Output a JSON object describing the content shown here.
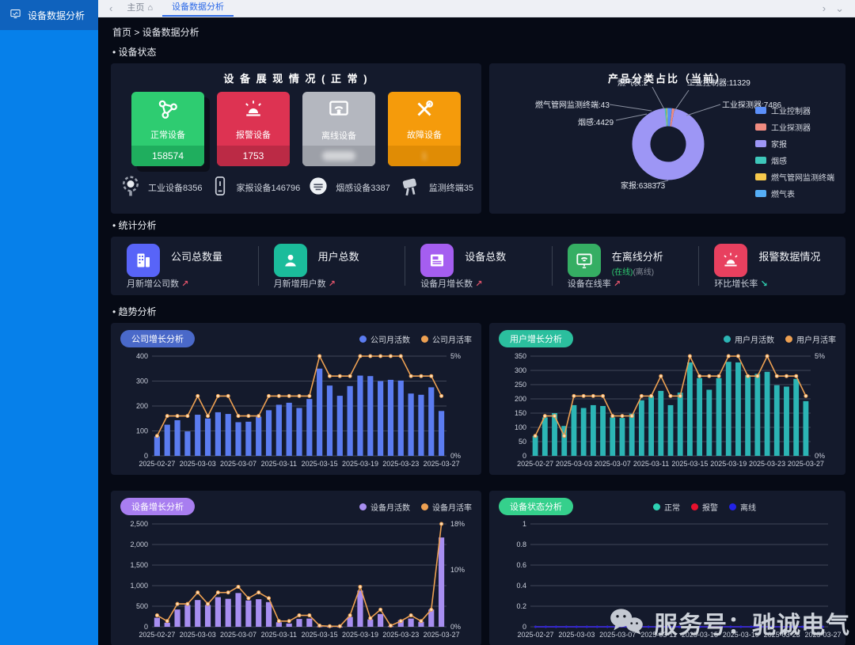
{
  "sidebar": {
    "active_item": {
      "label": "设备数据分析"
    }
  },
  "tabbar": {
    "back_chevron": "‹",
    "tabs": [
      {
        "label": "主页",
        "icon": "home-icon",
        "active": false
      },
      {
        "label": "设备数据分析",
        "icon": null,
        "active": true
      }
    ],
    "forward_chevron": "›",
    "more_chevron": "⌄"
  },
  "breadcrumb": "首页 > 设备数据分析",
  "sections": {
    "device_status": "• 设备状态",
    "stats": "• 统计分析",
    "trend": "• 趋势分析"
  },
  "device_panel": {
    "title": "设 备 展 现 情 况 ( 正 常 )",
    "cards": [
      {
        "label": "正常设备",
        "value": "158574",
        "color": "#2ecc71",
        "strip": "#1fae5e",
        "icon": "nodes-icon",
        "blurred": false,
        "raised": true
      },
      {
        "label": "报警设备",
        "value": "1753",
        "color": "#dd3352",
        "strip": "#bb2a45",
        "icon": "siren-icon",
        "blurred": false,
        "raised": false
      },
      {
        "label": "离线设备",
        "value": "",
        "color": "#b4b7bf",
        "strip": "#9da0a8",
        "icon": "offline-monitor-icon",
        "blurred": true,
        "raised": false
      },
      {
        "label": "故障设备",
        "value": "1",
        "color": "#f59b0b",
        "strip": "#e08c05",
        "icon": "tools-icon",
        "blurred": true,
        "raised": false
      }
    ],
    "devices": [
      {
        "label": "工业设备8356",
        "icon": "industry-device-icon"
      },
      {
        "label": "家报设备146796",
        "icon": "home-device-icon"
      },
      {
        "label": "烟感设备3387",
        "icon": "smoke-detector-icon"
      },
      {
        "label": "监测终端35",
        "icon": "monitor-terminal-icon"
      }
    ]
  },
  "stats_panel": {
    "items": [
      {
        "icon": "company-icon",
        "icon_color": "#5864f8",
        "title": "公司总数量",
        "sub": "月新增公司数",
        "arrow": "↗",
        "arrow_color": "#e0536a"
      },
      {
        "icon": "user-icon",
        "icon_color": "#1bbc9b",
        "title": "用户总数",
        "sub": "月新增用户数",
        "arrow": "↗",
        "arrow_color": "#e0536a"
      },
      {
        "icon": "device-card-icon",
        "icon_color": "#a55ef0",
        "title": "设备总数",
        "sub": "设备月增长数",
        "arrow": "↗",
        "arrow_color": "#e0536a"
      },
      {
        "icon": "online-monitor-icon",
        "icon_color": "#35ae63",
        "title": "在离线分析",
        "extra_online": "(在线)",
        "extra_offline": "(离线)",
        "online_color": "#2ecc71",
        "offline_color": "#868c98",
        "sub": "设备在线率",
        "arrow": "↗",
        "arrow_color": "#e0536a"
      },
      {
        "icon": "alarm-icon",
        "icon_color": "#e8405f",
        "title": "报警数据情况",
        "sub": "环比增长率",
        "arrow": "↘",
        "arrow_color": "#2fd0b0"
      }
    ]
  },
  "chart_data": [
    {
      "type": "pie",
      "title": "产品分类占比（当前）",
      "legend_position": "right",
      "slices": [
        {
          "name": "工业控制器",
          "value": 11329,
          "color": "#5b8ff9"
        },
        {
          "name": "工业探测器",
          "value": 7486,
          "color": "#f08b80"
        },
        {
          "name": "家报",
          "value": 638373,
          "color": "#9d96f5"
        },
        {
          "name": "烟感",
          "value": 4429,
          "color": "#3ec7ba"
        },
        {
          "name": "燃气管网监测终端",
          "value": 43,
          "color": "#f6c94c"
        },
        {
          "name": "燃气表",
          "value": 2,
          "color": "#55aef6"
        }
      ]
    },
    {
      "type": "bar",
      "title": "公司增长分析",
      "badge_color": "#4a69c9",
      "x": [
        "2025-02-27",
        "2025-02-28",
        "2025-03-01",
        "2025-03-02",
        "2025-03-03",
        "2025-03-04",
        "2025-03-05",
        "2025-03-06",
        "2025-03-07",
        "2025-03-08",
        "2025-03-09",
        "2025-03-10",
        "2025-03-11",
        "2025-03-12",
        "2025-03-13",
        "2025-03-14",
        "2025-03-15",
        "2025-03-16",
        "2025-03-17",
        "2025-03-18",
        "2025-03-19",
        "2025-03-20",
        "2025-03-21",
        "2025-03-22",
        "2025-03-23",
        "2025-03-24",
        "2025-03-25",
        "2025-03-26",
        "2025-03-27"
      ],
      "x_tick_every": 4,
      "left_axis": {
        "ticks": [
          0,
          100,
          200,
          300,
          400
        ],
        "max": 400
      },
      "right_axis": {
        "max": 5,
        "ticks": [
          {
            "value": 0,
            "label": "0%"
          },
          {
            "value": 5,
            "label": "5%"
          }
        ]
      },
      "series": [
        {
          "name": "公司月活数",
          "type": "bar",
          "color": "#5b7cf0",
          "values": [
            78,
            125,
            143,
            98,
            165,
            150,
            175,
            168,
            135,
            137,
            157,
            183,
            205,
            213,
            192,
            228,
            350,
            282,
            241,
            280,
            322,
            320,
            300,
            305,
            302,
            250,
            245,
            275,
            180
          ]
        },
        {
          "name": "公司月活率",
          "type": "line",
          "axis": "right",
          "color": "#eda052",
          "values": [
            1,
            2,
            2,
            2,
            3,
            2,
            3,
            3,
            2,
            2,
            2,
            3,
            3,
            3,
            3,
            3,
            5,
            4,
            4,
            4,
            5,
            5,
            5,
            5,
            5,
            4,
            4,
            4,
            3
          ]
        }
      ]
    },
    {
      "type": "bar",
      "title": "用户增长分析",
      "badge_color": "#2bbf9e",
      "x": [
        "2025-02-27",
        "2025-02-28",
        "2025-03-01",
        "2025-03-02",
        "2025-03-03",
        "2025-03-04",
        "2025-03-05",
        "2025-03-06",
        "2025-03-07",
        "2025-03-08",
        "2025-03-09",
        "2025-03-10",
        "2025-03-11",
        "2025-03-12",
        "2025-03-13",
        "2025-03-14",
        "2025-03-15",
        "2025-03-16",
        "2025-03-17",
        "2025-03-18",
        "2025-03-19",
        "2025-03-20",
        "2025-03-21",
        "2025-03-22",
        "2025-03-23",
        "2025-03-24",
        "2025-03-25",
        "2025-03-26",
        "2025-03-27"
      ],
      "x_tick_every": 4,
      "left_axis": {
        "ticks": [
          0,
          50,
          100,
          150,
          200,
          250,
          300,
          350
        ],
        "max": 350
      },
      "right_axis": {
        "max": 5,
        "ticks": [
          {
            "value": 0,
            "label": "0%"
          },
          {
            "value": 5,
            "label": "5%"
          }
        ]
      },
      "series": [
        {
          "name": "用户月活数",
          "type": "bar",
          "color": "#2cb5b5",
          "values": [
            70,
            135,
            150,
            105,
            178,
            168,
            178,
            175,
            135,
            133,
            148,
            195,
            210,
            228,
            178,
            222,
            328,
            273,
            232,
            273,
            330,
            328,
            283,
            288,
            295,
            248,
            243,
            270,
            192
          ]
        },
        {
          "name": "用户月活率",
          "type": "line",
          "axis": "right",
          "color": "#eda052",
          "values": [
            1,
            2,
            2,
            1,
            3,
            3,
            3,
            3,
            2,
            2,
            2,
            3,
            3,
            4,
            3,
            3,
            5,
            4,
            4,
            4,
            5,
            5,
            4,
            4,
            5,
            4,
            4,
            4,
            3
          ]
        }
      ]
    },
    {
      "type": "bar",
      "title": "设备增长分析",
      "badge_color": "#a87ef0",
      "x": [
        "2025-02-27",
        "2025-02-28",
        "2025-03-01",
        "2025-03-02",
        "2025-03-03",
        "2025-03-04",
        "2025-03-05",
        "2025-03-06",
        "2025-03-07",
        "2025-03-08",
        "2025-03-09",
        "2025-03-10",
        "2025-03-11",
        "2025-03-12",
        "2025-03-13",
        "2025-03-14",
        "2025-03-15",
        "2025-03-16",
        "2025-03-17",
        "2025-03-18",
        "2025-03-19",
        "2025-03-20",
        "2025-03-21",
        "2025-03-22",
        "2025-03-23",
        "2025-03-24",
        "2025-03-25",
        "2025-03-26",
        "2025-03-27"
      ],
      "x_tick_every": 4,
      "left_axis": {
        "ticks": [
          0,
          500,
          1000,
          1500,
          2000,
          2500
        ],
        "max": 2500
      },
      "right_axis": {
        "max": 18,
        "ticks": [
          {
            "value": 0,
            "label": "0%"
          },
          {
            "value": 10,
            "label": "10%"
          },
          {
            "value": 18,
            "label": "18%"
          }
        ]
      },
      "series": [
        {
          "name": "设备月活数",
          "type": "bar",
          "color": "#a78ef0",
          "values": [
            220,
            100,
            420,
            530,
            650,
            530,
            720,
            680,
            820,
            640,
            670,
            600,
            110,
            80,
            190,
            200,
            10,
            5,
            5,
            240,
            880,
            180,
            310,
            15,
            160,
            200,
            120,
            420,
            2170
          ]
        },
        {
          "name": "设备月活率",
          "type": "line",
          "axis": "right",
          "color": "#eda052",
          "values": [
            2,
            1,
            4,
            4,
            6,
            4,
            6,
            6,
            7,
            5,
            6,
            5,
            1,
            1,
            2,
            2,
            0.2,
            0.1,
            0.1,
            2,
            7,
            1.5,
            3,
            0.2,
            1,
            2,
            1,
            3,
            18
          ]
        }
      ]
    },
    {
      "type": "line",
      "title": "设备状态分析",
      "badge_color": "#35d08c",
      "x": [
        "2025-02-27",
        "2025-02-28",
        "2025-03-01",
        "2025-03-02",
        "2025-03-03",
        "2025-03-04",
        "2025-03-05",
        "2025-03-06",
        "2025-03-07",
        "2025-03-08",
        "2025-03-09",
        "2025-03-10",
        "2025-03-11",
        "2025-03-12",
        "2025-03-13",
        "2025-03-14",
        "2025-03-15",
        "2025-03-16",
        "2025-03-17",
        "2025-03-18",
        "2025-03-19",
        "2025-03-20",
        "2025-03-21",
        "2025-03-22",
        "2025-03-23",
        "2025-03-24",
        "2025-03-25",
        "2025-03-26",
        "2025-03-27"
      ],
      "x_tick_every": 4,
      "left_axis": {
        "ticks": [
          0,
          0.2,
          0.4,
          0.6,
          0.8,
          1
        ],
        "max": 1
      },
      "right_axis": null,
      "series": [
        {
          "name": "正常",
          "type": "line",
          "axis": "left",
          "color": "#2dd1b3",
          "values": [
            0,
            0,
            0,
            0,
            0,
            0,
            0,
            0,
            0,
            0,
            0,
            0,
            0,
            0,
            0,
            0,
            0,
            0,
            0,
            0,
            0,
            0,
            0,
            0,
            0,
            0,
            0,
            0,
            0
          ]
        },
        {
          "name": "报警",
          "type": "line",
          "axis": "left",
          "color": "#e8112d",
          "values": [
            0,
            0,
            0,
            0,
            0,
            0,
            0,
            0,
            0,
            0,
            0,
            0,
            0,
            0,
            0,
            0,
            0,
            0,
            0,
            0,
            0,
            0,
            0,
            0,
            0,
            0,
            0,
            0,
            0
          ]
        },
        {
          "name": "离线",
          "type": "line",
          "axis": "left",
          "color": "#2222e6",
          "values": [
            0,
            0,
            0,
            0,
            0,
            0,
            0,
            0,
            0,
            0,
            0,
            0,
            0,
            0,
            0,
            0,
            0,
            0,
            0,
            0,
            0,
            0,
            0,
            0,
            0,
            0,
            0,
            0,
            0
          ]
        }
      ]
    }
  ],
  "watermark": {
    "text": "服务号：驰诚电气",
    "icon": "wechat-icon"
  }
}
